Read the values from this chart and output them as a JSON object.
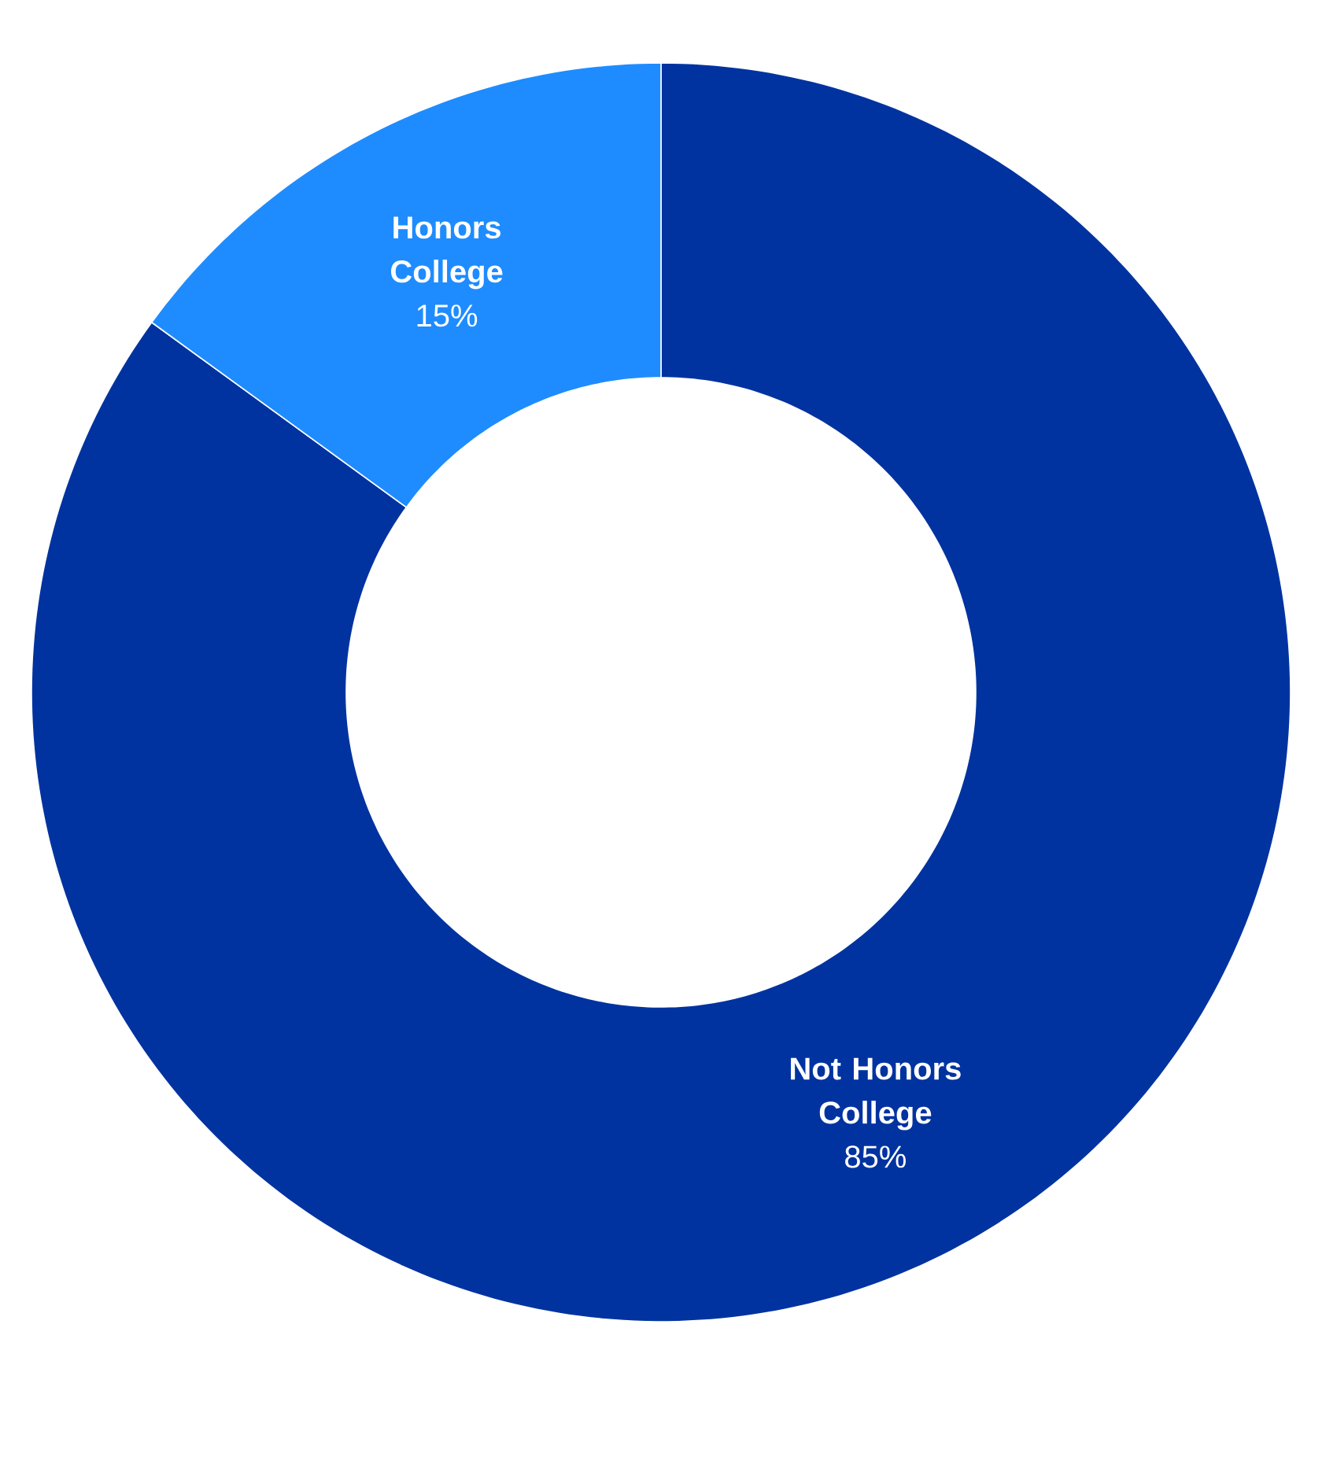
{
  "chart_data": {
    "type": "donut",
    "categories": [
      "Not Honors College",
      "Honors College"
    ],
    "values": [
      85,
      15
    ],
    "value_labels": [
      "85%",
      "15%"
    ],
    "colors": [
      "#0033a0",
      "#1e8cff"
    ]
  }
}
